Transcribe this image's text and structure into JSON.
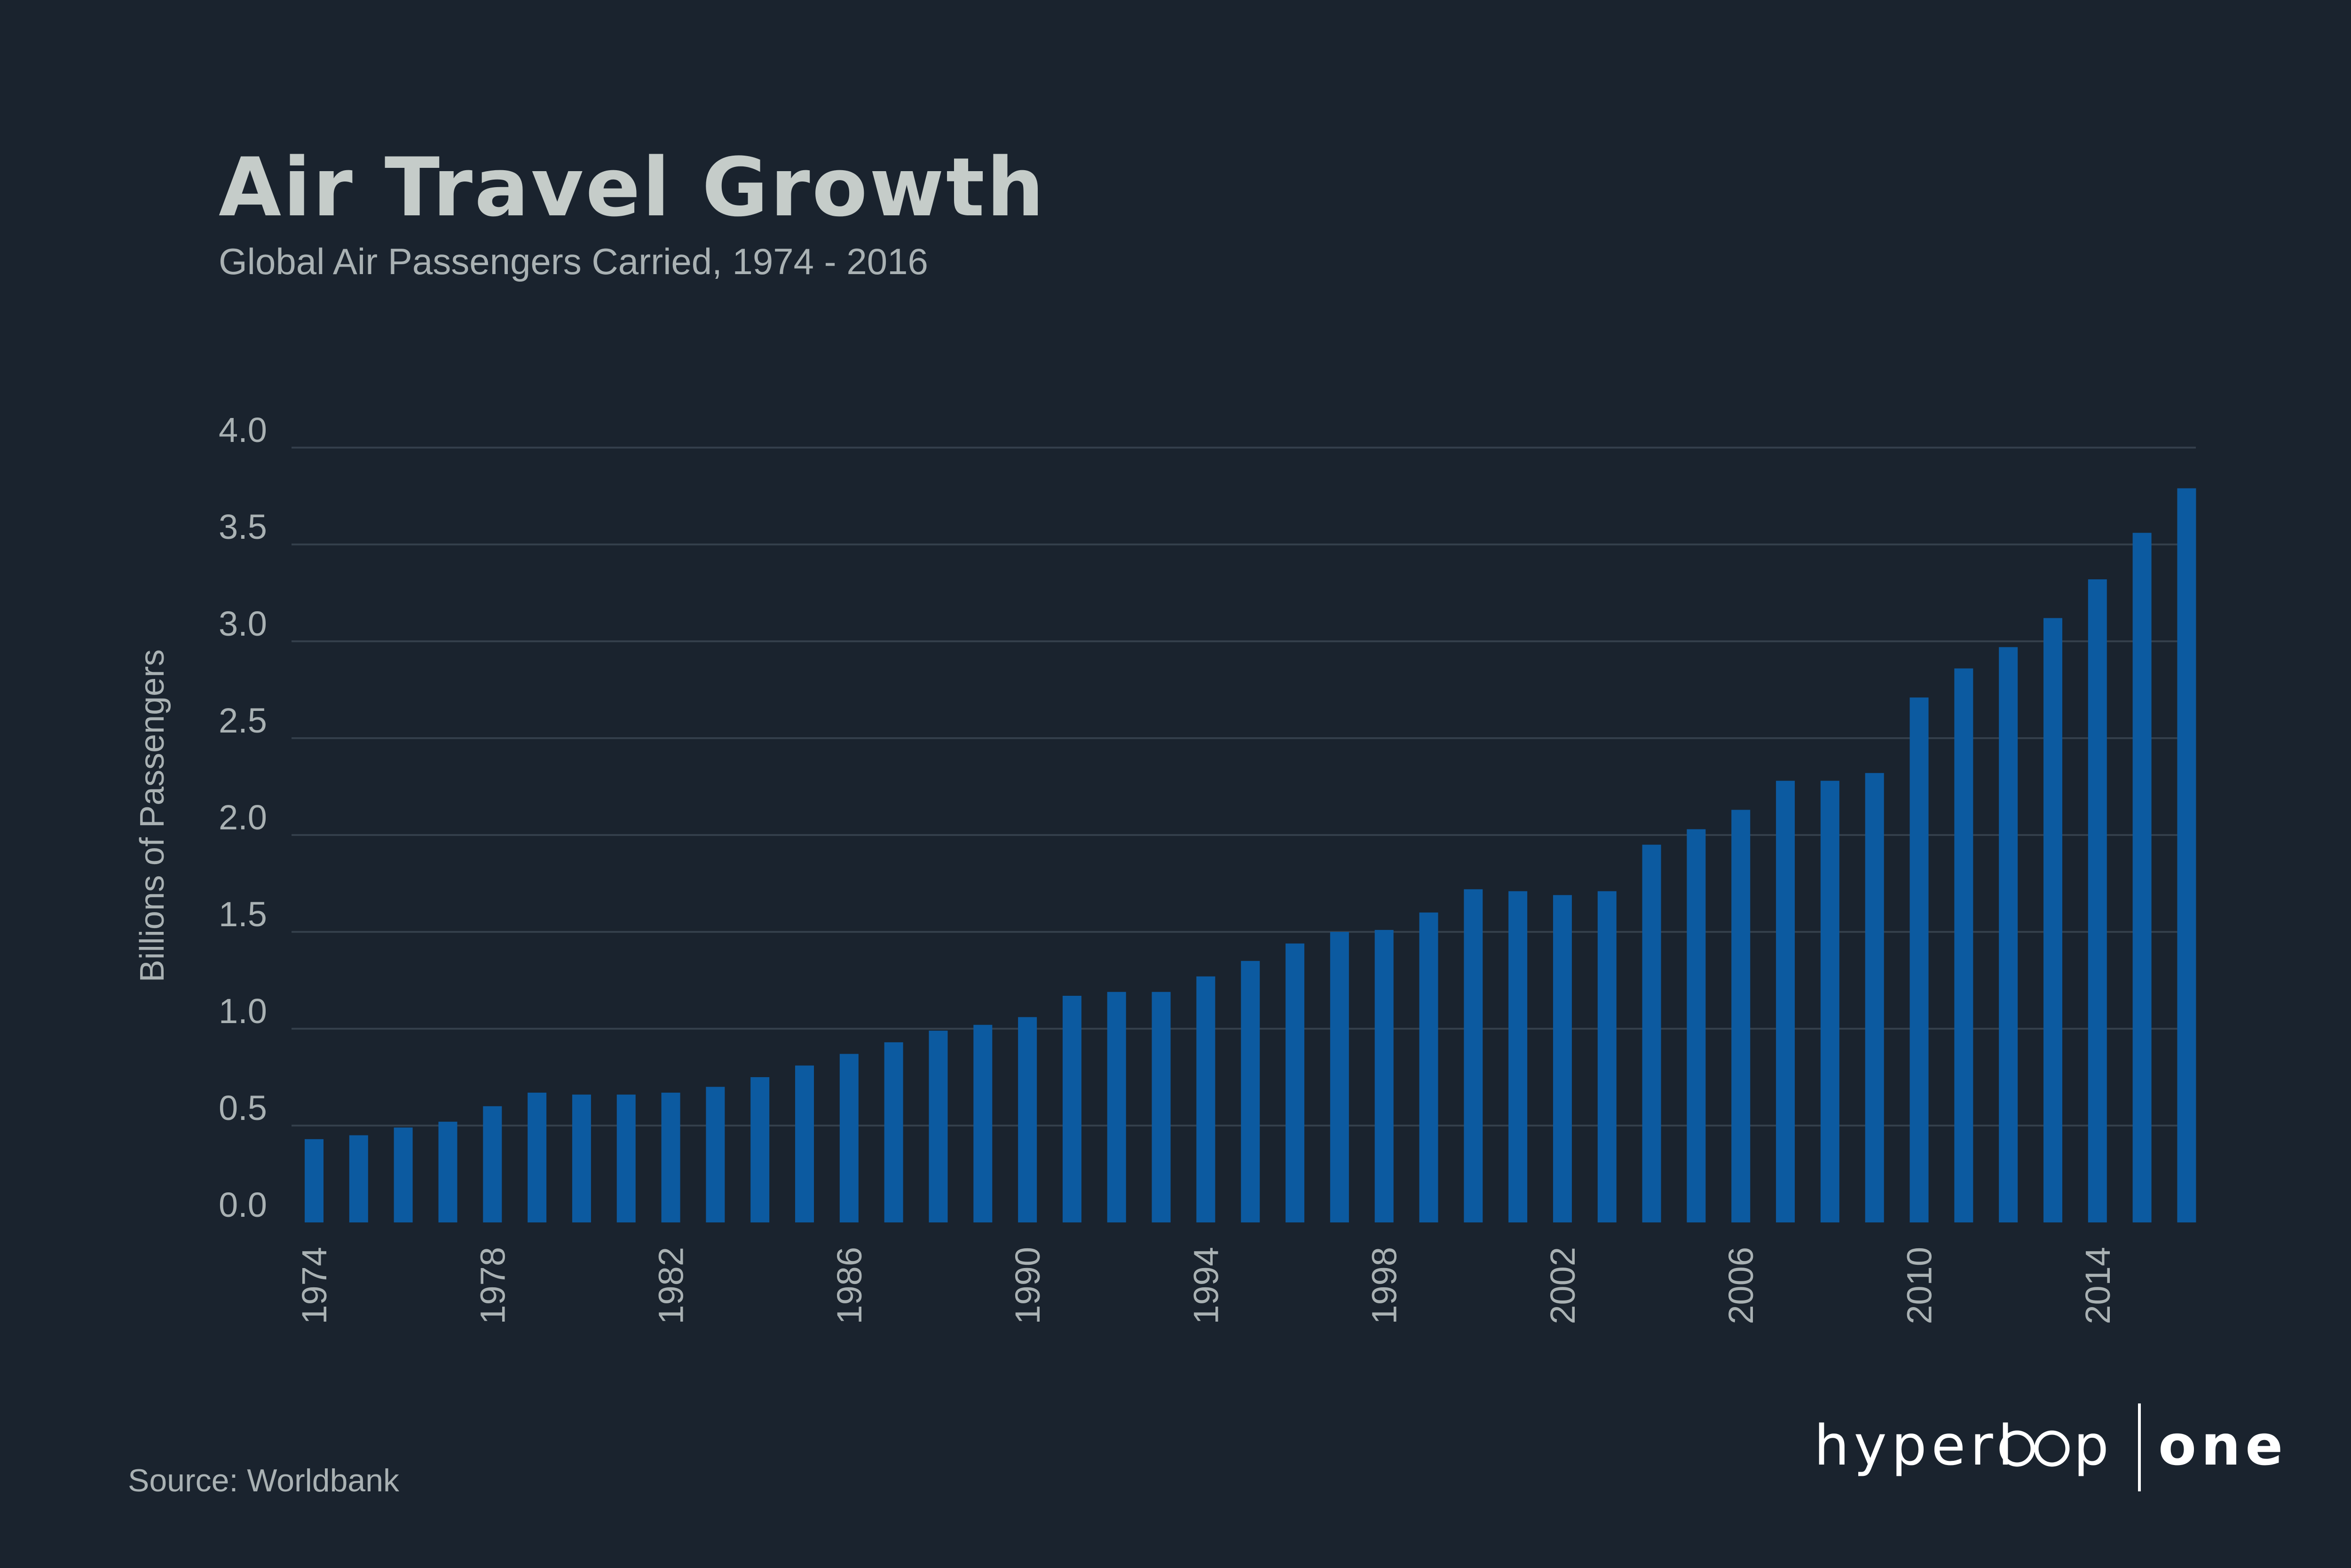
{
  "chart_data": {
    "type": "bar",
    "title": "Air Travel Growth",
    "subtitle": "Global Air Passengers Carried, 1974 - 2016",
    "xlabel": "",
    "ylabel": "Billions of Passengers",
    "ylim": [
      0,
      4.0
    ],
    "yticks": [
      "0.0",
      "0.5",
      "1.0",
      "1.5",
      "2.0",
      "2.5",
      "3.0",
      "3.5",
      "4.0"
    ],
    "ytick_values": [
      0,
      0.5,
      1.0,
      1.5,
      2.0,
      2.5,
      3.0,
      3.5,
      4.0
    ],
    "xtick_labels": [
      "1974",
      "1978",
      "1982",
      "1986",
      "1990",
      "1994",
      "1998",
      "2002",
      "2006",
      "2010",
      "2014"
    ],
    "grid": true,
    "categories": [
      "1974",
      "1975",
      "1976",
      "1977",
      "1978",
      "1979",
      "1980",
      "1981",
      "1982",
      "1983",
      "1984",
      "1985",
      "1986",
      "1987",
      "1988",
      "1989",
      "1990",
      "1991",
      "1992",
      "1993",
      "1994",
      "1995",
      "1996",
      "1997",
      "1998",
      "1999",
      "2000",
      "2001",
      "2002",
      "2003",
      "2004",
      "2005",
      "2006",
      "2007",
      "2008",
      "2009",
      "2010",
      "2011",
      "2012",
      "2013",
      "2014",
      "2015",
      "2016"
    ],
    "values": [
      0.43,
      0.45,
      0.49,
      0.52,
      0.6,
      0.67,
      0.66,
      0.66,
      0.67,
      0.7,
      0.75,
      0.81,
      0.87,
      0.93,
      0.99,
      1.02,
      1.06,
      1.17,
      1.19,
      1.19,
      1.27,
      1.35,
      1.44,
      1.5,
      1.51,
      1.6,
      1.72,
      1.71,
      1.69,
      1.71,
      1.95,
      2.03,
      2.13,
      2.28,
      2.28,
      2.32,
      2.71,
      2.86,
      2.97,
      3.12,
      3.32,
      3.56,
      3.79
    ]
  },
  "footer": {
    "source": "Source: Worldbank"
  },
  "logo": {
    "left": "hyperl",
    "after_loop": "p",
    "right": "one"
  },
  "colors": {
    "background": "#1a232e",
    "bar": "#0c5aa0",
    "grid": "#343f4b",
    "text": "#a9b1b3",
    "title": "#c5ccc9"
  }
}
